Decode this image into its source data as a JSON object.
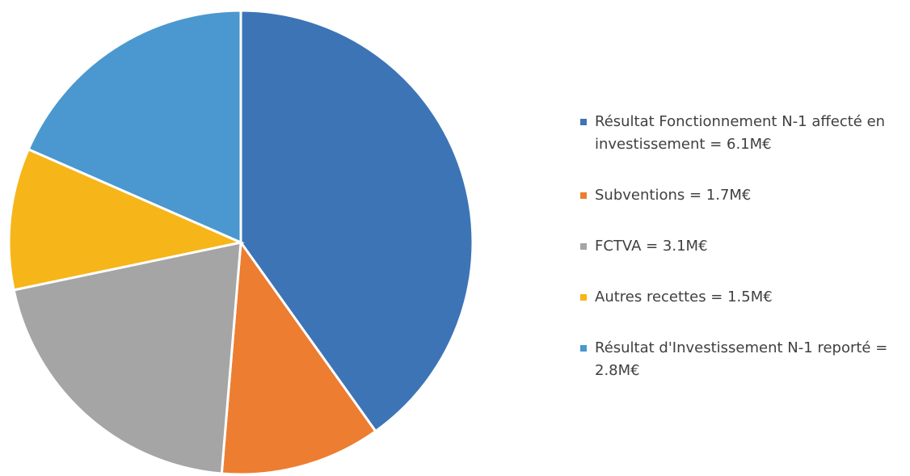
{
  "chart_data": {
    "type": "pie",
    "categories": [
      "Résultat Fonctionnement N-1 affecté en investissement = 6.1M€",
      "Subventions = 1.7M€",
      "FCTVA = 3.1M€",
      "Autres recettes = 1.5M€",
      "Résultat d'Investissement N-1 reporté = 2.8M€"
    ],
    "values": [
      6.1,
      1.7,
      3.1,
      1.5,
      2.8
    ],
    "colors": [
      "#3d74b6",
      "#ed7d31",
      "#a5a5a5",
      "#f6b519",
      "#4a98cf"
    ],
    "legend": "right"
  }
}
